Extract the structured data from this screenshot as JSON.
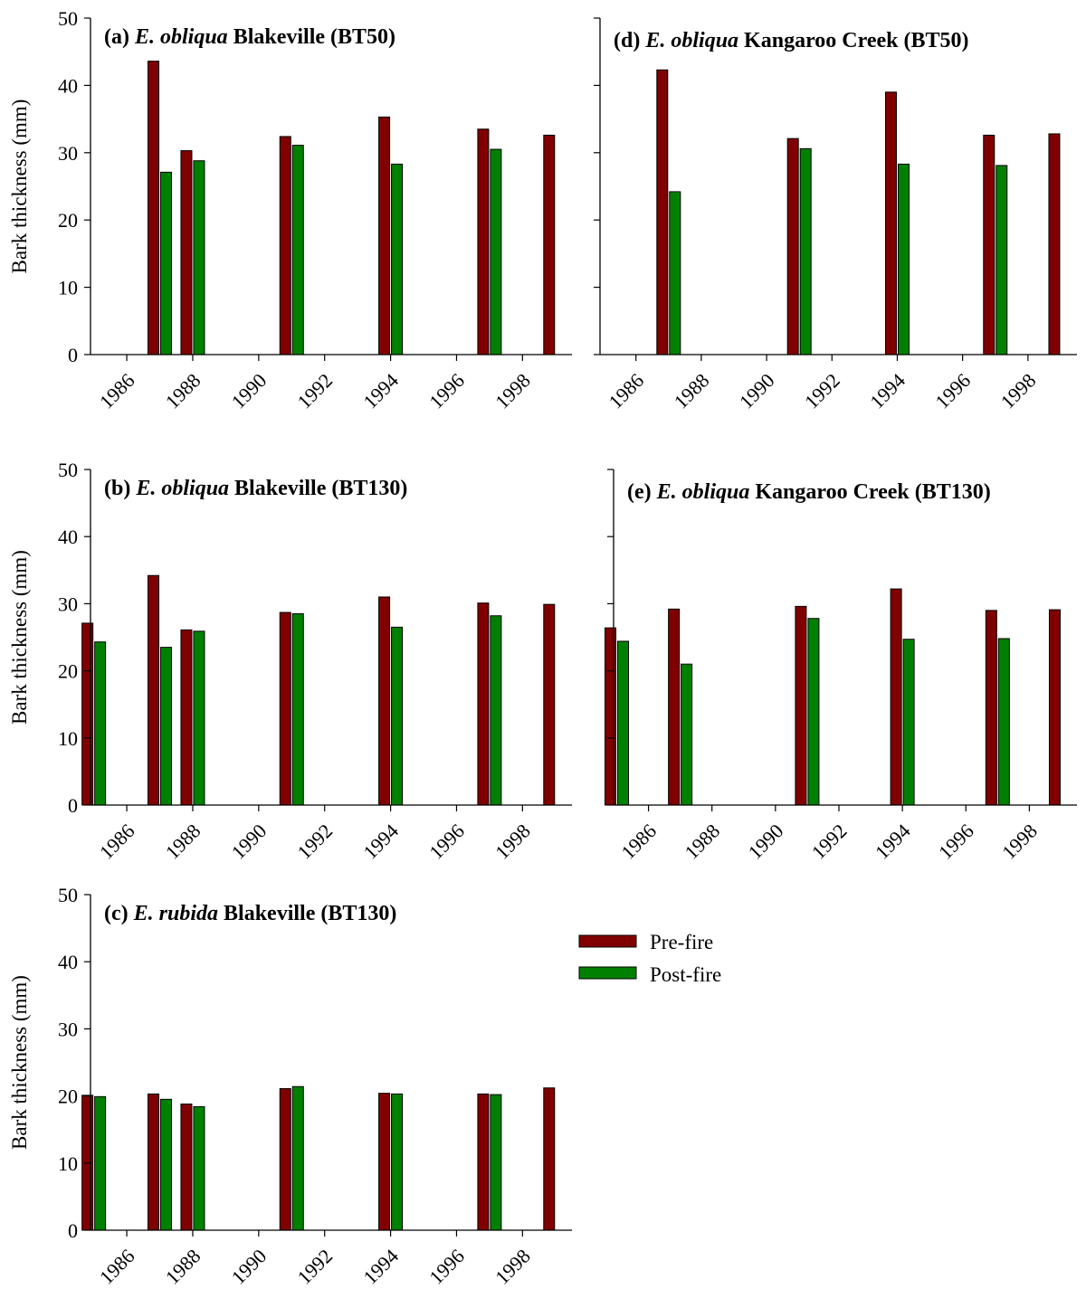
{
  "colors": {
    "pre": "#800000",
    "post": "#008000"
  },
  "legend": {
    "pre_label": "Pre-fire",
    "post_label": "Post-fire"
  },
  "chart_data": [
    {
      "type": "bar",
      "title": {
        "prefix": "(a) ",
        "species": "E. obliqua",
        "rest": " Blakeville (BT50)"
      },
      "ylabel": "Bark thickness (mm)",
      "ylim": [
        0,
        50
      ],
      "yticks": [
        0,
        10,
        20,
        30,
        40,
        50
      ],
      "xlim": [
        1984.9,
        1999.5
      ],
      "xticks": [
        "1986",
        "1988",
        "1990",
        "1992",
        "1994",
        "1996",
        "1998"
      ],
      "series": [
        {
          "name": "Pre-fire",
          "x": [
            1987,
            1988,
            1991,
            1994,
            1997,
            1999
          ],
          "values": [
            43.6,
            30.3,
            32.4,
            35.3,
            33.5,
            32.6
          ]
        },
        {
          "name": "Post-fire",
          "x": [
            1987,
            1988,
            1991,
            1994,
            1997
          ],
          "values": [
            27.1,
            28.8,
            31.1,
            28.3,
            30.5
          ]
        }
      ]
    },
    {
      "type": "bar",
      "title": {
        "prefix": "(b) ",
        "species": "E. obliqua",
        "rest": " Blakeville (BT130)"
      },
      "ylabel": "Bark thickness (mm)",
      "ylim": [
        0,
        50
      ],
      "yticks": [
        0,
        10,
        20,
        30,
        40,
        50
      ],
      "xlim": [
        1984.9,
        1999.5
      ],
      "xticks": [
        "1986",
        "1988",
        "1990",
        "1992",
        "1994",
        "1996",
        "1998"
      ],
      "series": [
        {
          "name": "Pre-fire",
          "x": [
            1985,
            1987,
            1988,
            1991,
            1994,
            1997,
            1999
          ],
          "values": [
            27.1,
            34.2,
            26.1,
            28.7,
            31.0,
            30.1,
            29.9
          ]
        },
        {
          "name": "Post-fire",
          "x": [
            1985,
            1987,
            1988,
            1991,
            1994,
            1997
          ],
          "values": [
            24.3,
            23.5,
            25.9,
            28.5,
            26.5,
            28.2
          ]
        }
      ]
    },
    {
      "type": "bar",
      "title": {
        "prefix": "(c) ",
        "species": "E. rubida",
        "rest": " Blakeville (BT130)"
      },
      "ylabel": "Bark thickness (mm)",
      "ylim": [
        0,
        50
      ],
      "yticks": [
        0,
        10,
        20,
        30,
        40,
        50
      ],
      "xlim": [
        1984.9,
        1999.5
      ],
      "xticks": [
        "1986",
        "1988",
        "1990",
        "1992",
        "1994",
        "1996",
        "1998"
      ],
      "series": [
        {
          "name": "Pre-fire",
          "x": [
            1985,
            1987,
            1988,
            1991,
            1994,
            1997,
            1999
          ],
          "values": [
            20.1,
            20.3,
            18.8,
            21.1,
            20.4,
            20.3,
            21.2
          ]
        },
        {
          "name": "Post-fire",
          "x": [
            1985,
            1987,
            1988,
            1991,
            1994,
            1997
          ],
          "values": [
            19.9,
            19.5,
            18.4,
            21.4,
            20.3,
            20.2
          ]
        }
      ]
    },
    {
      "type": "bar",
      "title": {
        "prefix": "(d) ",
        "species": "E. obliqua",
        "rest": " Kangaroo Creek (BT50)"
      },
      "ylabel": "",
      "ylim": [
        0,
        50
      ],
      "yticks": [
        0,
        10,
        20,
        30,
        40,
        50
      ],
      "xlim": [
        1984.9,
        1999.5
      ],
      "xticks": [
        "1986",
        "1988",
        "1990",
        "1992",
        "1994",
        "1996",
        "1998"
      ],
      "series": [
        {
          "name": "Pre-fire",
          "x": [
            1987,
            1991,
            1994,
            1997,
            1999
          ],
          "values": [
            42.3,
            32.1,
            39.0,
            32.6,
            32.8
          ]
        },
        {
          "name": "Post-fire",
          "x": [
            1987,
            1991,
            1994,
            1997
          ],
          "values": [
            24.2,
            30.6,
            28.3,
            28.1
          ]
        }
      ]
    },
    {
      "type": "bar",
      "title": {
        "prefix": "(e) ",
        "species": "E. obliqua",
        "rest": " Kangaroo Creek (BT130)"
      },
      "ylabel": "",
      "ylim": [
        0,
        50
      ],
      "yticks": [
        0,
        10,
        20,
        30,
        40,
        50
      ],
      "xlim": [
        1984.9,
        1999.5
      ],
      "xticks": [
        "1986",
        "1988",
        "1990",
        "1992",
        "1994",
        "1996",
        "1998"
      ],
      "series": [
        {
          "name": "Pre-fire",
          "x": [
            1985,
            1987,
            1991,
            1994,
            1997,
            1999
          ],
          "values": [
            26.4,
            29.2,
            29.6,
            32.2,
            29.0,
            29.1
          ]
        },
        {
          "name": "Post-fire",
          "x": [
            1985,
            1987,
            1991,
            1994,
            1997
          ],
          "values": [
            24.4,
            21.0,
            27.8,
            24.7,
            24.8
          ]
        }
      ]
    }
  ]
}
